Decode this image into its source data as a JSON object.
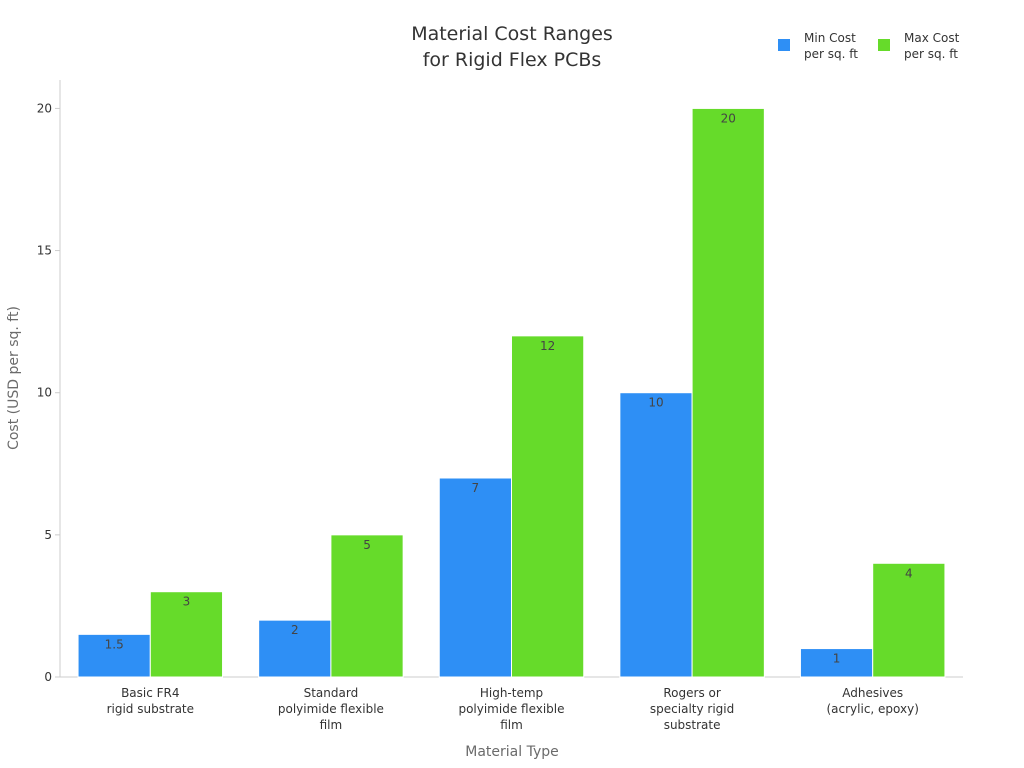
{
  "chart_data": {
    "type": "bar",
    "title_lines": [
      "Material Cost Ranges",
      "for Rigid Flex PCBs"
    ],
    "xlabel": "Material Type",
    "ylabel": "Cost (USD per sq. ft)",
    "ylim": [
      0,
      21
    ],
    "yticks": [
      0,
      5,
      10,
      15,
      20
    ],
    "grid": false,
    "legend_position": "top-right",
    "categories": [
      [
        "Basic FR4",
        "rigid substrate"
      ],
      [
        "Standard",
        "polyimide flexible",
        "film"
      ],
      [
        "High-temp",
        "polyimide flexible",
        "film"
      ],
      [
        "Rogers or",
        "specialty rigid",
        "substrate"
      ],
      [
        "Adhesives",
        "(acrylic, epoxy)"
      ]
    ],
    "series": [
      {
        "name_lines": [
          "Min Cost",
          "per sq. ft"
        ],
        "color": "#2e8ff5",
        "values": [
          1.5,
          2,
          7,
          10,
          1
        ],
        "labels": [
          "1.5",
          "2",
          "7",
          "10",
          "1"
        ]
      },
      {
        "name_lines": [
          "Max Cost",
          "per sq. ft"
        ],
        "color": "#66db2a",
        "values": [
          3,
          5,
          12,
          20,
          4
        ],
        "labels": [
          "3",
          "5",
          "12",
          "20",
          "4"
        ]
      }
    ]
  }
}
